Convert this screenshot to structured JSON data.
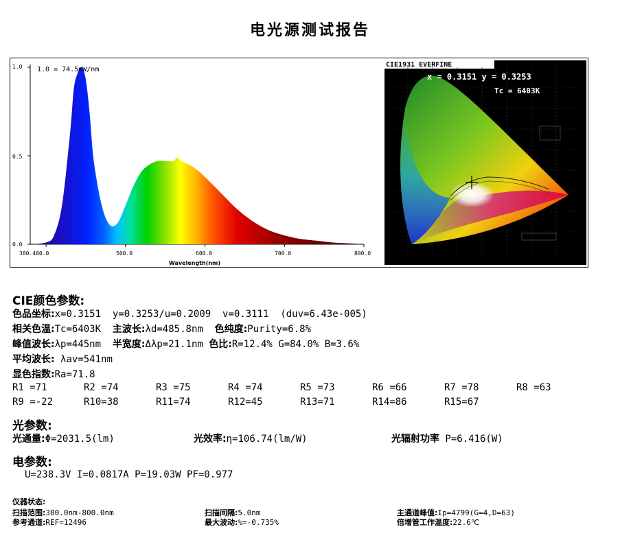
{
  "title": "电光源测试报告",
  "spectrum": {
    "peak_note": "1.0 = 74.5mW/nm",
    "y_ticks": [
      "1.0",
      "0.5",
      "0.0"
    ],
    "x_ticks": [
      "380.400.0",
      "500.0",
      "600.0",
      "700.0",
      "800.0"
    ],
    "xlabel": "Wavelength(nm)"
  },
  "chart_data": {
    "type": "area",
    "xlabel": "Wavelength(nm)",
    "ylabel": "",
    "xlim": [
      380,
      800
    ],
    "ylim": [
      0,
      1.0
    ],
    "x": [
      380,
      400,
      410,
      420,
      430,
      435,
      440,
      445,
      450,
      455,
      460,
      470,
      480,
      490,
      500,
      510,
      520,
      530,
      540,
      550,
      560,
      565,
      570,
      580,
      590,
      600,
      620,
      640,
      660,
      680,
      700,
      720,
      740,
      760,
      780,
      800
    ],
    "values": [
      0.0,
      0.01,
      0.05,
      0.22,
      0.62,
      0.88,
      0.97,
      1.0,
      0.93,
      0.73,
      0.47,
      0.22,
      0.11,
      0.12,
      0.22,
      0.33,
      0.41,
      0.45,
      0.47,
      0.47,
      0.47,
      0.49,
      0.47,
      0.45,
      0.42,
      0.38,
      0.29,
      0.2,
      0.13,
      0.08,
      0.05,
      0.03,
      0.02,
      0.01,
      0.005,
      0.0
    ]
  },
  "cie_chart": {
    "label": "CIE1931 EVERFINE",
    "xy": "x = 0.3151 y = 0.3253",
    "tc": "Tc = 6403K"
  },
  "cie_params": {
    "heading": "CIE颜色参数:",
    "line1_label": "色品坐标:",
    "line1_value": "x=0.3151  y=0.3253/u=0.2009  v=0.3111  (duv=6.43e-005)",
    "line2_label_a": "相关色温:",
    "line2_value_a": "Tc=6403K  ",
    "line2_label_b": "主波长:",
    "line2_value_b": "λd=485.8nm  ",
    "line2_label_c": "色纯度:",
    "line2_value_c": "Purity=6.8%",
    "line3_label_a": "峰值波长:",
    "line3_value_a": "λp=445nm  ",
    "line3_label_b": "半宽度:",
    "line3_value_b": "Δλp=21.1nm ",
    "line3_label_c": "色比:",
    "line3_value_c": "R=12.4% G=84.0% B=3.6%",
    "line4_label": "平均波长:",
    "line4_value": " λav=541nm",
    "line5_label": "显色指数:",
    "line5_value": "Ra=71.8"
  },
  "r_values": [
    "R1 =71",
    "R2 =74",
    "R3 =75",
    "R4 =74",
    "R5 =73",
    "R6 =66",
    "R7 =78",
    "R8 =63",
    "R9 =-22",
    "R10=38",
    "R11=74",
    "R12=45",
    "R13=71",
    "R14=86",
    "R15=67"
  ],
  "photo_params": {
    "heading": "光参数:",
    "flux_label": "光通量:",
    "flux_value": "Φ=2031.5(lm)",
    "efficacy_label": "光效率:",
    "efficacy_value": "η=106.74(lm/W)",
    "radiant_label": "光辐射功率",
    "radiant_value": " P=6.416(W)"
  },
  "elec_params": {
    "heading": "电参数:",
    "value": "U=238.3V I=0.0817A P=19.03W PF=0.977"
  },
  "instrument": {
    "heading": "仪器状态:",
    "scan_range_label": "扫描范围:",
    "scan_range_value": "380.0nm-800.0nm",
    "scan_interval_label": "扫描间隔:",
    "scan_interval_value": "5.0nm",
    "main_peak_label": "主通道峰值:",
    "main_peak_value": "Ip=4799(G=4,D=63)",
    "ref_label": "参考通道:",
    "ref_value": "REF=12496",
    "max_fluct_label": "最大波动:",
    "max_fluct_value": "%=-0.735%",
    "pmt_temp_label": "倍增管工作温度:",
    "pmt_temp_value": "22.6℃"
  }
}
